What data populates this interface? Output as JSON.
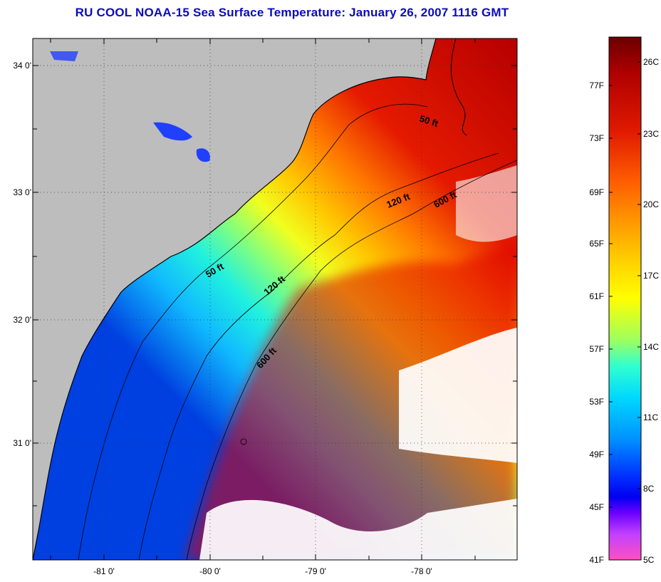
{
  "title": "RU COOL  NOAA-15  Sea Surface Temperature:  January 26, 2007 1116 GMT",
  "map": {
    "lat_labels": [
      "34 0'",
      "33 0'",
      "32 0'",
      "31 0'"
    ],
    "lon_labels": [
      "-81 0'",
      "-80 0'",
      "-79 0'",
      "-78 0'"
    ],
    "contour_labels": {
      "c50_upper": "50 ft",
      "c50_lower": "50 ft",
      "c120_upper": "120 ft",
      "c120_lower": "120 ft",
      "c600_upper": "600 ft",
      "c600_lower": "600 ft"
    },
    "colors": {
      "land": "#bdbdbd",
      "no_data": "#ffffff",
      "coastline": "#000000"
    }
  },
  "colorbar": {
    "f_labels": [
      "77F",
      "73F",
      "69F",
      "65F",
      "61F",
      "57F",
      "53F",
      "49F",
      "45F",
      "41F"
    ],
    "c_labels": [
      "26C",
      "23C",
      "20C",
      "17C",
      "14C",
      "11C",
      "8C",
      "5C"
    ],
    "gradient_colors": [
      "#6b0000",
      "#b00000",
      "#e01a00",
      "#ff5a00",
      "#ff9900",
      "#ffd000",
      "#ffff00",
      "#b8ff40",
      "#40ffb0",
      "#00e8ff",
      "#00a8ff",
      "#0050ff",
      "#0000ff",
      "#7000ff",
      "#c040ff",
      "#ff40d0",
      "#ff60b0"
    ]
  }
}
